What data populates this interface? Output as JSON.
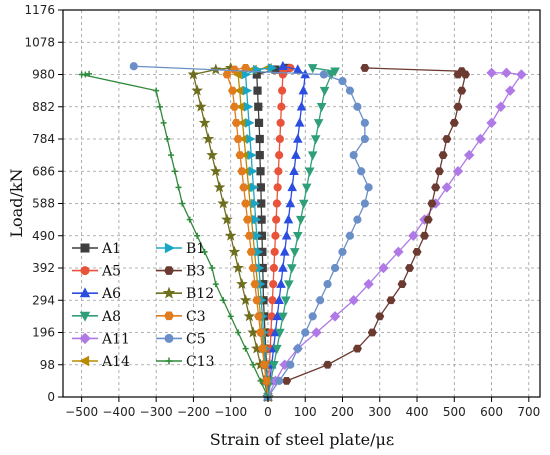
{
  "chart_data": {
    "type": "line",
    "xlabel": "Strain of steel plate/με",
    "ylabel": "Load/kN",
    "xlim": [
      -550,
      730
    ],
    "ylim": [
      0,
      1176
    ],
    "xticks": [
      -500,
      -400,
      -300,
      -200,
      -100,
      0,
      100,
      200,
      300,
      400,
      500,
      600,
      700
    ],
    "yticks": [
      0,
      98,
      196,
      294,
      392,
      490,
      588,
      686,
      784,
      882,
      980,
      1078,
      1176
    ],
    "grid": true,
    "legend_position": "lower-left",
    "series": [
      {
        "name": "A1",
        "color": "#3f3f3f",
        "marker": "square",
        "x": [
          0,
          -2,
          -4,
          -6,
          -8,
          -10,
          -12,
          -13,
          -14,
          -15,
          -16,
          -17,
          -18,
          -19,
          -20,
          -22,
          -22,
          -24,
          -26,
          -28,
          -30,
          20,
          50
        ],
        "y": [
          0,
          49,
          98,
          147,
          196,
          245,
          294,
          343,
          392,
          441,
          490,
          539,
          588,
          637,
          686,
          735,
          784,
          833,
          882,
          931,
          980,
          995,
          1000
        ]
      },
      {
        "name": "A5",
        "color": "#e8533a",
        "marker": "circle",
        "x": [
          0,
          2,
          4,
          6,
          8,
          10,
          12,
          14,
          16,
          18,
          20,
          22,
          24,
          26,
          28,
          30,
          32,
          34,
          36,
          38,
          40,
          42,
          60
        ],
        "y": [
          0,
          49,
          98,
          147,
          196,
          245,
          294,
          343,
          392,
          441,
          490,
          539,
          588,
          637,
          686,
          735,
          784,
          833,
          882,
          931,
          980,
          990,
          1000
        ]
      },
      {
        "name": "A6",
        "color": "#2b4de0",
        "marker": "triangle-up",
        "x": [
          0,
          5,
          10,
          15,
          20,
          25,
          30,
          35,
          40,
          45,
          50,
          55,
          60,
          65,
          70,
          75,
          80,
          85,
          90,
          95,
          100,
          80,
          40
        ],
        "y": [
          0,
          49,
          98,
          147,
          196,
          245,
          294,
          343,
          392,
          441,
          490,
          539,
          588,
          637,
          686,
          735,
          784,
          833,
          882,
          931,
          980,
          995,
          1005
        ]
      },
      {
        "name": "A8",
        "color": "#2e9f78",
        "marker": "triangle-down",
        "x": [
          0,
          8,
          16,
          24,
          32,
          40,
          48,
          56,
          64,
          72,
          80,
          88,
          96,
          104,
          112,
          120,
          128,
          136,
          144,
          152,
          170,
          180,
          120
        ],
        "y": [
          0,
          49,
          98,
          147,
          196,
          245,
          294,
          343,
          392,
          441,
          490,
          539,
          588,
          637,
          686,
          735,
          784,
          833,
          882,
          931,
          980,
          990,
          1000
        ]
      },
      {
        "name": "A11",
        "color": "#b07ae6",
        "marker": "diamond",
        "x": [
          0,
          20,
          45,
          80,
          130,
          180,
          230,
          270,
          310,
          350,
          390,
          420,
          450,
          480,
          510,
          540,
          570,
          600,
          625,
          650,
          680,
          640,
          600
        ],
        "y": [
          0,
          49,
          98,
          147,
          196,
          245,
          294,
          343,
          392,
          441,
          490,
          539,
          588,
          637,
          686,
          735,
          784,
          833,
          882,
          931,
          980,
          985,
          985
        ]
      },
      {
        "name": "A14",
        "color": "#b88a00",
        "marker": "triangle-left",
        "x": [
          0,
          -4,
          -8,
          -12,
          -16,
          -20,
          -24,
          -28,
          -32,
          -36,
          -40,
          -44,
          -48,
          -52,
          -56,
          -60,
          -64,
          -68,
          -72,
          -76,
          -80,
          -40,
          0
        ],
        "y": [
          0,
          49,
          98,
          147,
          196,
          245,
          294,
          343,
          392,
          441,
          490,
          539,
          588,
          637,
          686,
          735,
          784,
          833,
          882,
          931,
          980,
          995,
          1000
        ]
      },
      {
        "name": "B1",
        "color": "#19a6c4",
        "marker": "triangle-right",
        "x": [
          0,
          -3,
          -6,
          -9,
          -12,
          -15,
          -18,
          -21,
          -24,
          -27,
          -30,
          -33,
          -36,
          -39,
          -42,
          -45,
          -48,
          -51,
          -54,
          -57,
          -60,
          -30,
          10
        ],
        "y": [
          0,
          49,
          98,
          147,
          196,
          245,
          294,
          343,
          392,
          441,
          490,
          539,
          588,
          637,
          686,
          735,
          784,
          833,
          882,
          931,
          980,
          995,
          1000
        ]
      },
      {
        "name": "B3",
        "color": "#6b3a30",
        "marker": "hexagon",
        "x": [
          50,
          160,
          240,
          280,
          300,
          330,
          360,
          380,
          400,
          420,
          430,
          440,
          450,
          460,
          470,
          480,
          500,
          510,
          520,
          530,
          510,
          520,
          260
        ],
        "y": [
          49,
          98,
          147,
          196,
          245,
          294,
          343,
          392,
          441,
          490,
          539,
          588,
          637,
          686,
          735,
          784,
          833,
          882,
          931,
          980,
          980,
          990,
          1000
        ]
      },
      {
        "name": "B12",
        "color": "#6e6e1e",
        "marker": "star",
        "x": [
          0,
          -10,
          -20,
          -30,
          -40,
          -50,
          -60,
          -70,
          -80,
          -90,
          -100,
          -110,
          -120,
          -130,
          -140,
          -150,
          -160,
          -170,
          -180,
          -190,
          -200,
          -140,
          -100
        ],
        "y": [
          0,
          49,
          98,
          147,
          196,
          245,
          294,
          343,
          392,
          441,
          490,
          539,
          588,
          637,
          686,
          735,
          784,
          833,
          882,
          931,
          980,
          995,
          1000
        ]
      },
      {
        "name": "C3",
        "color": "#e27a1e",
        "marker": "hexagon",
        "x": [
          0,
          -5,
          -10,
          -15,
          -20,
          -25,
          -30,
          -35,
          -40,
          -45,
          -50,
          -55,
          -60,
          -65,
          -70,
          -75,
          -80,
          -85,
          -90,
          -95,
          -110,
          -90,
          -60
        ],
        "y": [
          0,
          49,
          98,
          147,
          196,
          245,
          294,
          343,
          392,
          441,
          490,
          539,
          588,
          637,
          686,
          735,
          784,
          833,
          882,
          931,
          980,
          995,
          1000
        ]
      },
      {
        "name": "C5",
        "color": "#6a8fc8",
        "marker": "circle",
        "x": [
          0,
          30,
          60,
          80,
          100,
          120,
          140,
          160,
          180,
          200,
          220,
          240,
          260,
          270,
          250,
          230,
          260,
          260,
          240,
          220,
          200,
          150,
          -360
        ],
        "y": [
          0,
          49,
          98,
          147,
          196,
          245,
          294,
          343,
          392,
          441,
          490,
          539,
          588,
          637,
          686,
          735,
          784,
          833,
          882,
          931,
          960,
          980,
          1005
        ]
      },
      {
        "name": "C13",
        "color": "#2f8a3a",
        "marker": "plus",
        "x": [
          0,
          -20,
          -40,
          -60,
          -80,
          -100,
          -120,
          -140,
          -150,
          -170,
          -190,
          -210,
          -230,
          -240,
          -250,
          -260,
          -270,
          -280,
          -290,
          -300,
          -500,
          -490,
          -480
        ],
        "y": [
          0,
          49,
          98,
          147,
          196,
          245,
          294,
          343,
          392,
          441,
          490,
          539,
          588,
          637,
          686,
          735,
          784,
          833,
          882,
          931,
          980,
          980,
          982
        ]
      }
    ]
  }
}
